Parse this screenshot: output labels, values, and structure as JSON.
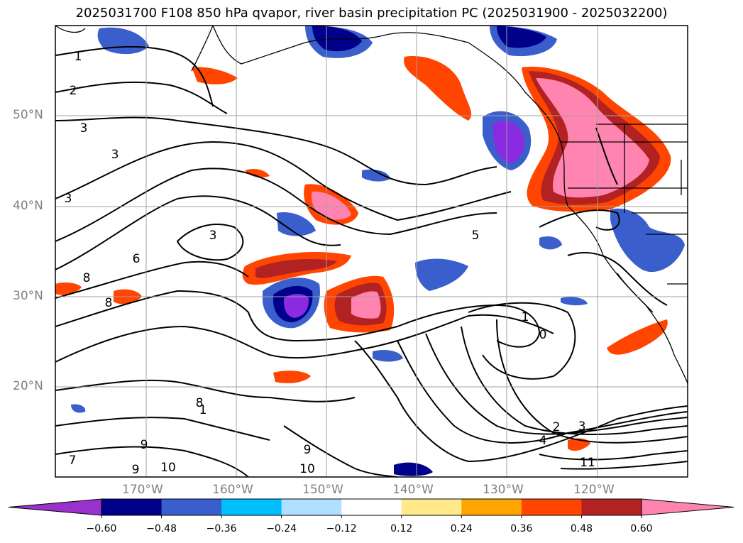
{
  "title": "2025031700 F108 850 hPa qvapor, river basin precipitation PC (2025031900 - 2025032200)",
  "lat_labels": [
    "50°N",
    "40°N",
    "30°N",
    "20°N"
  ],
  "lon_labels": [
    "170°W",
    "160°W",
    "150°W",
    "140°W",
    "130°W",
    "120°W"
  ],
  "colorbar": {
    "ticks": [
      "−0.60",
      "−0.48",
      "−0.36",
      "−0.24",
      "−0.12",
      "0.12",
      "0.24",
      "0.36",
      "0.48",
      "0.60"
    ],
    "colors": [
      "#8a2be2",
      "#00008b",
      "#3a5fcd",
      "#00bfff",
      "#b0e0ff",
      "#ffffff",
      "#ffe98a",
      "#ffa500",
      "#ff4500",
      "#b22222",
      "#ff85b0"
    ],
    "under_color": "#9932cc",
    "over_color": "#ff85b0"
  },
  "contour_labels": [
    "1",
    "2",
    "3",
    "3",
    "3",
    "3",
    "5",
    "6",
    "8",
    "8",
    "8",
    "9",
    "9",
    "9",
    "10",
    "10",
    "11",
    "1",
    "0",
    "2",
    "3",
    "4",
    "7",
    "1"
  ]
}
